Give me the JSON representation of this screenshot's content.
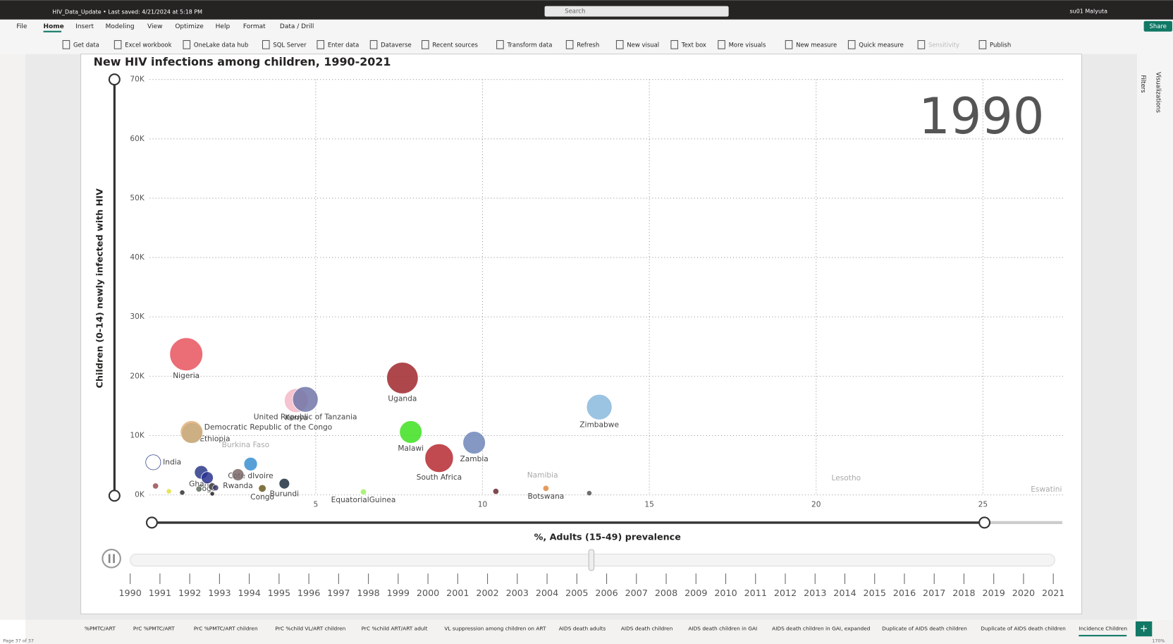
{
  "titlebar": {
    "file": "HIV_Data_Update • Last saved: 4/21/2024 at 5:18 PM",
    "search": "Search",
    "user": "su01 Malyuta"
  },
  "menu": [
    "File",
    "Home",
    "Insert",
    "Modeling",
    "View",
    "Optimize",
    "Help",
    "Format",
    "Data / Drill"
  ],
  "share": "Share",
  "ribbon": [
    "Get data",
    "Excel workbook",
    "OneLake data hub",
    "SQL Server",
    "Enter data",
    "Dataverse",
    "Recent sources",
    "Transform data",
    "Refresh",
    "New visual",
    "Text box",
    "More visuals",
    "New measure",
    "Quick measure",
    "Sensitivity",
    "Publish"
  ],
  "panes": [
    "Filters",
    "Visualizations"
  ],
  "chart_data": {
    "type": "scatter",
    "title": "New HIV infections among children, 1990-2021",
    "x_label": "%, Adults (15-49) prevalence",
    "y_label": "Children (0-14) newly infected with HIV",
    "play_value": "1990",
    "xlim": [
      0,
      27.4
    ],
    "xticks": [
      5,
      10,
      15,
      20,
      25
    ],
    "ylim": [
      0,
      70000
    ],
    "yticks": [
      {
        "value": 0,
        "label": "0K"
      },
      {
        "value": 10000,
        "label": "10K"
      },
      {
        "value": 20000,
        "label": "20K"
      },
      {
        "value": 30000,
        "label": "30K"
      },
      {
        "value": 40000,
        "label": "40K"
      },
      {
        "value": 50000,
        "label": "50K"
      },
      {
        "value": 60000,
        "label": "60K"
      },
      {
        "value": 70000,
        "label": "70K"
      }
    ],
    "grid": true,
    "points": [
      {
        "name": "Ethiopia",
        "x": 1.3,
        "y": 10400,
        "size": 196,
        "color": "#2a9aa0"
      },
      {
        "name": "Nigeria",
        "x": 1.12,
        "y": 23700,
        "size": 484,
        "color": "#e8545e"
      },
      {
        "name": "Uganda",
        "x": 7.6,
        "y": 19700,
        "size": 441,
        "color": "#a0272d"
      },
      {
        "name": "Kenya",
        "x": 4.42,
        "y": 15900,
        "size": 256,
        "color": "#f4b8c8"
      },
      {
        "name": "United Republic of Tanzania",
        "x": 4.69,
        "y": 16100,
        "size": 289,
        "color": "#7176a8"
      },
      {
        "name": "Zimbabwe",
        "x": 13.5,
        "y": 14800,
        "size": 289,
        "color": "#8ab8dd"
      },
      {
        "name": "Democratic Republic of the Congo",
        "x": 1.28,
        "y": 10600,
        "size": 225,
        "color": "#e3b07a"
      },
      {
        "name": "Malawi",
        "x": 7.85,
        "y": 10600,
        "size": 225,
        "color": "#3de020"
      },
      {
        "name": "Zambia",
        "x": 9.75,
        "y": 8800,
        "size": 225,
        "color": "#6e86b8"
      },
      {
        "name": "South Africa",
        "x": 8.7,
        "y": 6200,
        "size": 361,
        "color": "#b52a30"
      },
      {
        "name": "Cote dIvoire",
        "x": 3.05,
        "y": 5200,
        "size": 81,
        "color": "#3a8fd0"
      },
      {
        "name": "India",
        "x": 0.13,
        "y": 5500,
        "size": 100,
        "color": "#ffffff"
      },
      {
        "name": "Ghana",
        "x": 1.57,
        "y": 3800,
        "size": 81,
        "color": "#2a3a8a"
      },
      {
        "name": "Togo",
        "x": 1.75,
        "y": 2900,
        "size": 64,
        "color": "#2a3290"
      },
      {
        "name": "Rwanda",
        "x": 2.67,
        "y": 3400,
        "size": 64,
        "color": "#7a6a6a"
      },
      {
        "name": "Burundi",
        "x": 4.06,
        "y": 1900,
        "size": 49,
        "color": "#1e2f40"
      },
      {
        "name": "Congo",
        "x": 3.4,
        "y": 1100,
        "size": 25,
        "color": "#6a5a20"
      },
      {
        "name": "EquatorialGuinea",
        "x": 6.43,
        "y": 500,
        "size": 16,
        "color": "#9ef060"
      },
      {
        "name": "Botswana",
        "x": 11.9,
        "y": 1100,
        "size": 16,
        "color": "#e08a40"
      },
      {
        "name": null,
        "x": 10.4,
        "y": 600,
        "size": 16,
        "color": "#6a2a30"
      },
      {
        "name": null,
        "x": 13.2,
        "y": 300,
        "size": 12,
        "color": "#555555"
      },
      {
        "name": null,
        "x": 1.9,
        "y": 1400,
        "size": 25,
        "color": "#444444"
      },
      {
        "name": null,
        "x": 0.2,
        "y": 1500,
        "size": 16,
        "color": "#9a5050"
      },
      {
        "name": null,
        "x": 0.6,
        "y": 600,
        "size": 12,
        "color": "#e0e040"
      },
      {
        "name": null,
        "x": 1.0,
        "y": 400,
        "size": 12,
        "color": "#333333"
      },
      {
        "name": null,
        "x": 1.5,
        "y": 1000,
        "size": 16,
        "color": "#607060"
      },
      {
        "name": null,
        "x": 1.9,
        "y": 200,
        "size": 9,
        "color": "#222222"
      },
      {
        "name": null,
        "x": 2.0,
        "y": 1200,
        "size": 16,
        "color": "#3a3a6a"
      },
      {
        "name": "Burkina Faso",
        "x": 2.9,
        "y": 8400,
        "size": null,
        "color": "#999999"
      },
      {
        "name": "Namibia",
        "x": 11.8,
        "y": 3300,
        "size": null,
        "color": "#999999"
      },
      {
        "name": "Lesotho",
        "x": 20.9,
        "y": 2800,
        "size": null,
        "color": "#999999"
      },
      {
        "name": "Eswatini",
        "x": 26.9,
        "y": 900,
        "size": null,
        "color": "#999999"
      }
    ],
    "years": [
      "1990",
      "1991",
      "1992",
      "1993",
      "1994",
      "1995",
      "1996",
      "1997",
      "1998",
      "1999",
      "2000",
      "2001",
      "2002",
      "2003",
      "2004",
      "2005",
      "2006",
      "2007",
      "2008",
      "2009",
      "2010",
      "2011",
      "2012",
      "2013",
      "2014",
      "2015",
      "2016",
      "2017",
      "2018",
      "2019",
      "2020",
      "2021"
    ]
  },
  "tabs": [
    "%PMTC/ART",
    "PrC %PMTC/ART",
    "PrC %PMTC/ART children",
    "PrC %child VL/ART children",
    "PrC %child ART/ART adult",
    "VL suppression among children on ART",
    "AIDS death adults",
    "AIDS death children",
    "AIDS death children in GAI",
    "AIDS death children in GAI, expanded",
    "Duplicate of AIDS death children",
    "Duplicate of AIDS death children",
    "Incidence Children"
  ],
  "status": {
    "page": "Page 37 of 37",
    "zoom": "170%"
  }
}
